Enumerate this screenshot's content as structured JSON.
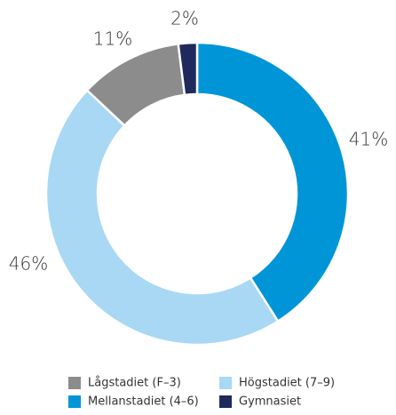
{
  "chart_data": {
    "type": "donut",
    "categories": [
      "Mellanstadiet (4–6)",
      "Högstadiet (7–9)",
      "Lågstadiet (F–3)",
      "Gymnasiet"
    ],
    "values": [
      41,
      46,
      11,
      2
    ],
    "value_labels": [
      "41%",
      "46%",
      "11%",
      "2%"
    ],
    "colors": [
      "#0095d6",
      "#a8d8f4",
      "#8c8c8c",
      "#1f2a5c"
    ]
  }
}
